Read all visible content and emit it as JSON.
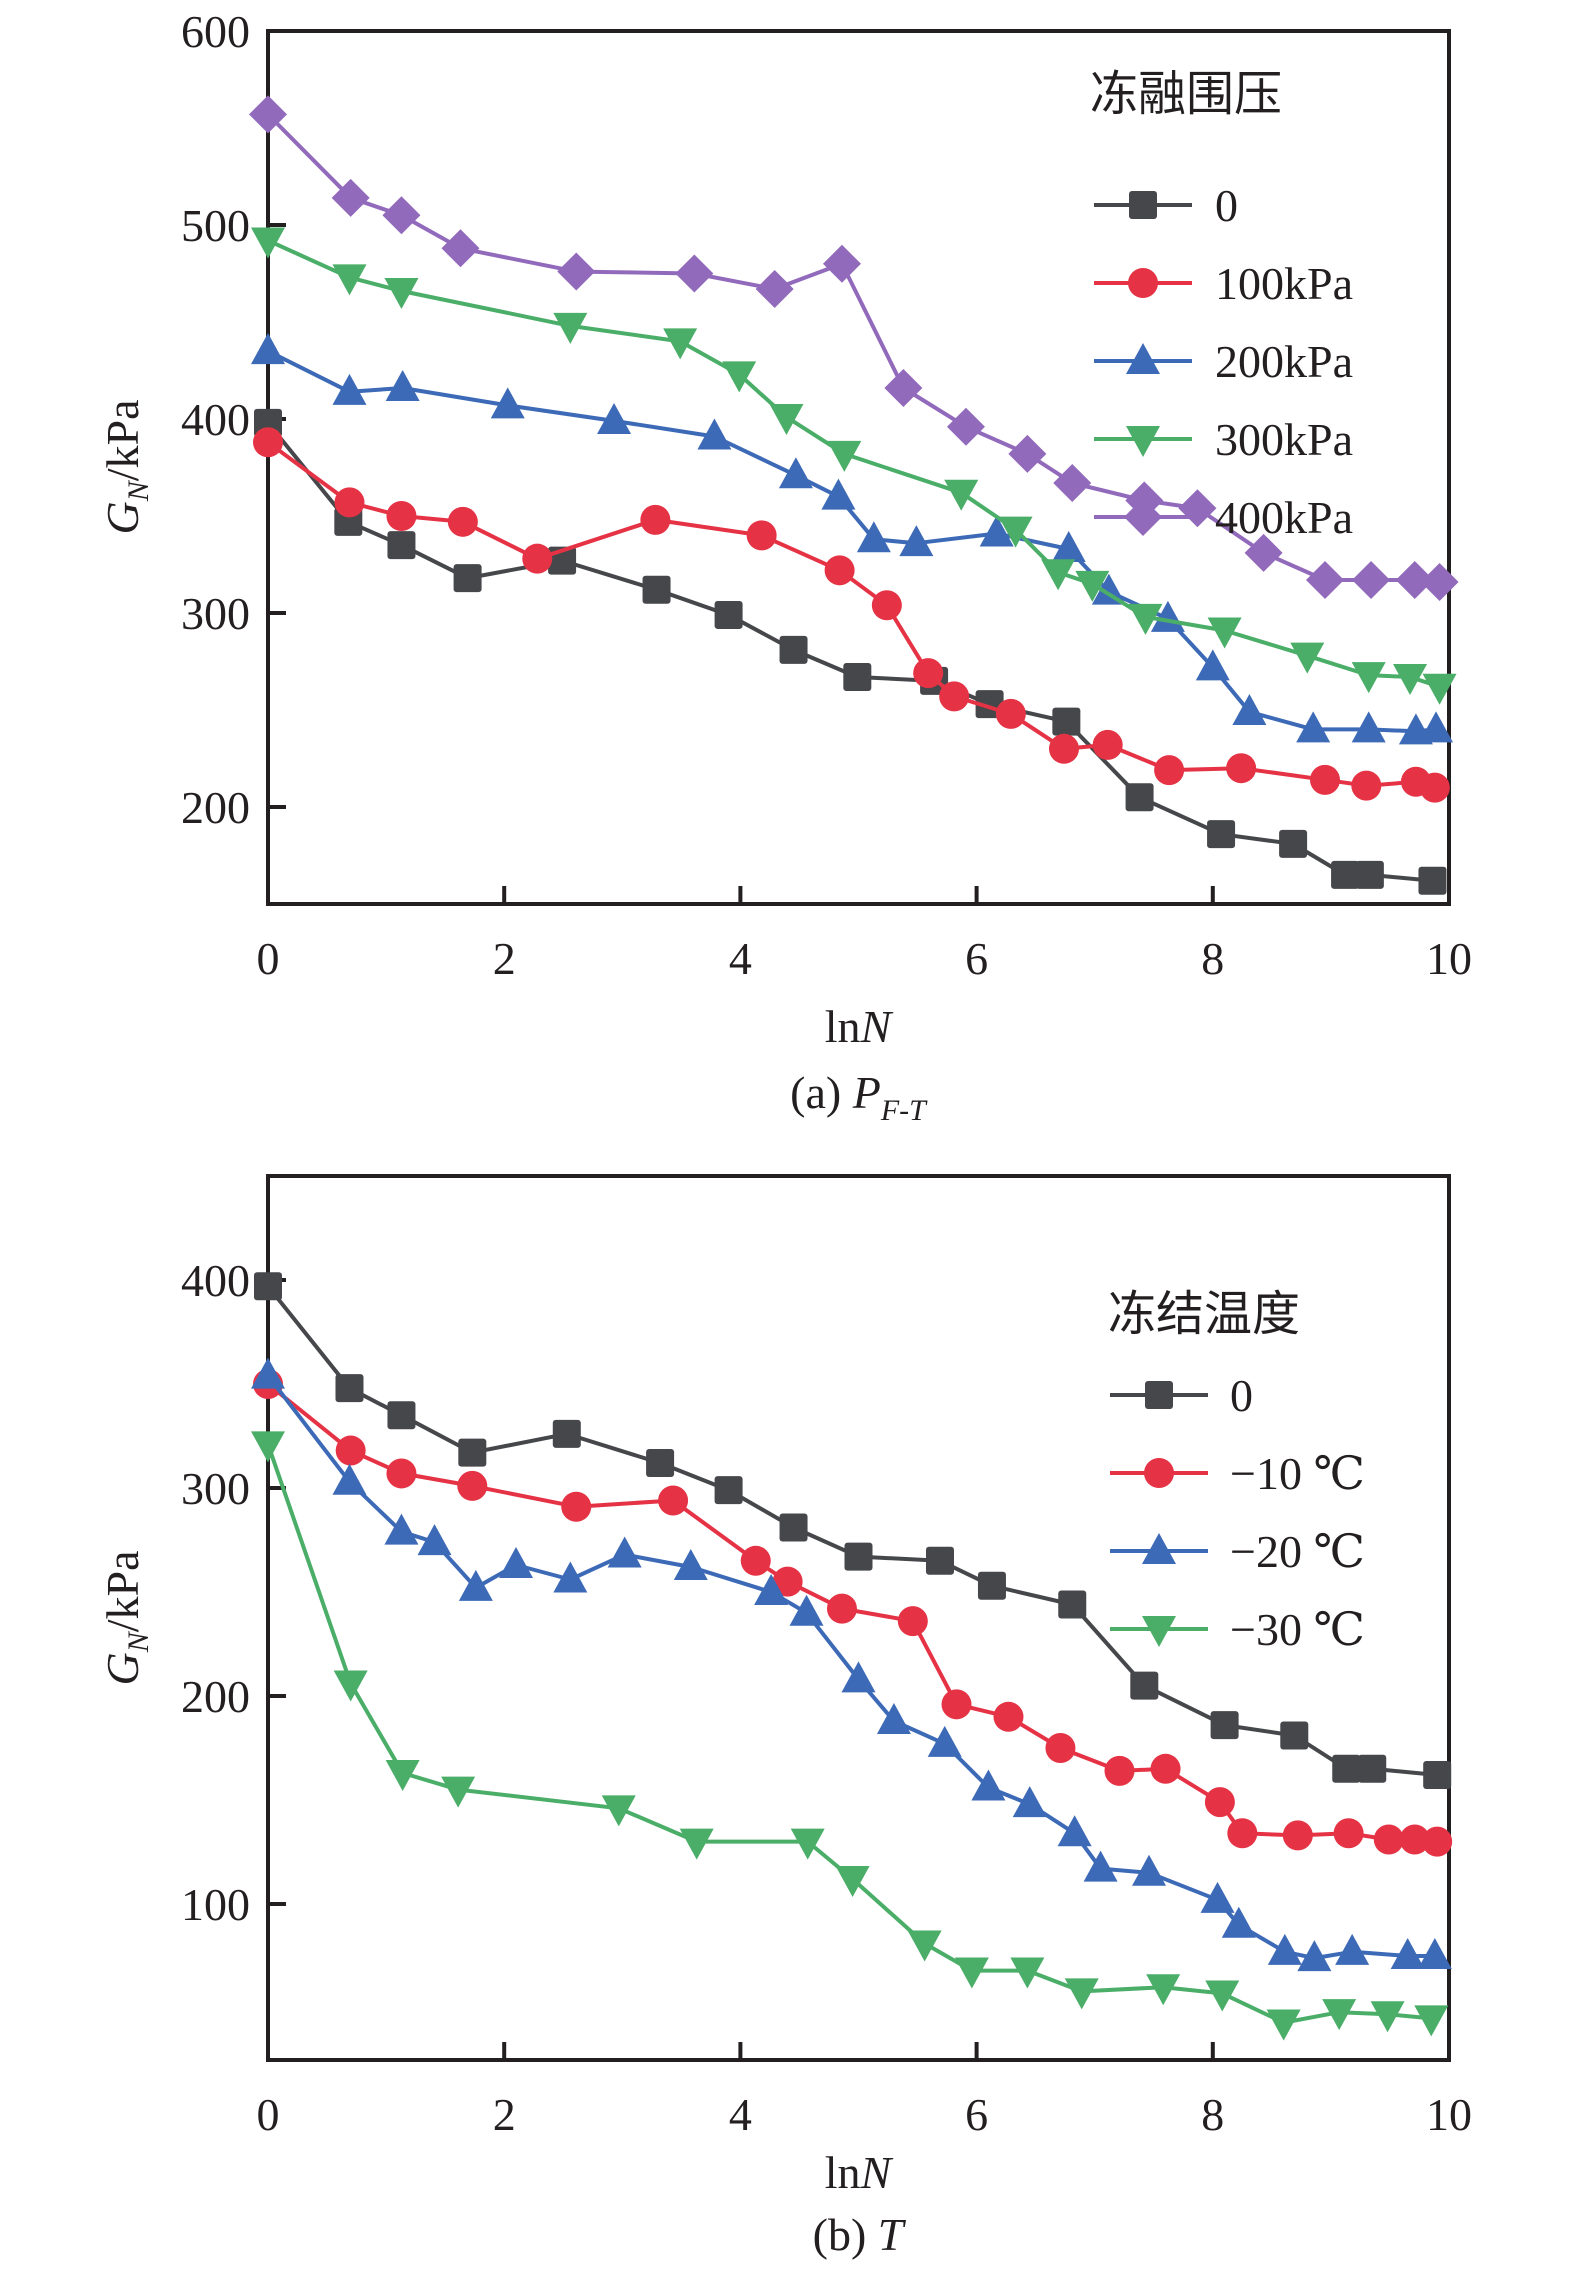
{
  "chart_data": [
    {
      "type": "line",
      "id": "a",
      "caption_prefix": "(a) ",
      "caption_var": "P",
      "caption_sub": "F-T",
      "xlabel_prefix": "ln",
      "xlabel_var": "N",
      "ylabel_var": "G",
      "ylabel_sub": "N",
      "ylabel_unit": "/kPa",
      "xlim": [
        0,
        10
      ],
      "ylim": [
        150,
        600
      ],
      "xticks": [
        0,
        2,
        4,
        6,
        8,
        10
      ],
      "yticks": [
        200,
        300,
        400,
        500,
        600
      ],
      "grid": false,
      "legend_title": "冻融围压",
      "legend_position": "top-right",
      "series": [
        {
          "name": "0",
          "color": "#46474b",
          "marker": "square",
          "x": [
            0,
            0.68,
            1.13,
            1.69,
            2.49,
            3.29,
            3.9,
            4.45,
            4.99,
            5.64,
            6.11,
            6.76,
            7.38,
            8.07,
            8.68,
            9.12,
            9.33,
            9.86
          ],
          "y": [
            398,
            347,
            335,
            318,
            327,
            312,
            299,
            281,
            267,
            265,
            253,
            244,
            205,
            186,
            181,
            165,
            165,
            162
          ]
        },
        {
          "name": "100kPa",
          "color": "#e53345",
          "marker": "circle",
          "x": [
            0,
            0.69,
            1.13,
            1.65,
            2.28,
            3.28,
            4.18,
            4.84,
            5.24,
            5.59,
            5.81,
            6.29,
            6.74,
            7.11,
            7.63,
            8.24,
            8.95,
            9.3,
            9.72,
            9.88
          ],
          "y": [
            388,
            357,
            350,
            347,
            328,
            348,
            340,
            322,
            304,
            269,
            257,
            248,
            230,
            232,
            219,
            220,
            214,
            211,
            213,
            210
          ]
        },
        {
          "name": "200kPa",
          "color": "#3d6ab7",
          "marker": "triangle-up",
          "x": [
            0,
            0.69,
            1.14,
            2.03,
            2.93,
            3.78,
            4.47,
            4.83,
            5.13,
            5.49,
            6.17,
            6.78,
            7.12,
            7.62,
            8.0,
            8.31,
            8.85,
            9.32,
            9.72,
            9.89
          ],
          "y": [
            435,
            414,
            416,
            407,
            399,
            391,
            371,
            360,
            338,
            336,
            341,
            333,
            311,
            297,
            272,
            249,
            240,
            240,
            239,
            240
          ]
        },
        {
          "name": "300kPa",
          "color": "#4aae68",
          "marker": "triangle-down",
          "x": [
            0,
            0.69,
            1.13,
            2.56,
            3.49,
            3.99,
            4.39,
            4.88,
            5.87,
            6.33,
            6.69,
            6.98,
            7.43,
            8.1,
            8.8,
            9.32,
            9.67,
            9.92
          ],
          "y": [
            492,
            473,
            466,
            448,
            440,
            423,
            401,
            382,
            362,
            343,
            321,
            315,
            298,
            291,
            278,
            268,
            267,
            262
          ]
        },
        {
          "name": "400kPa",
          "color": "#926abc",
          "marker": "diamond",
          "x": [
            0,
            0.7,
            1.13,
            1.63,
            2.61,
            3.61,
            4.29,
            4.86,
            5.38,
            5.91,
            6.43,
            6.81,
            7.42,
            7.87,
            8.43,
            8.95,
            9.34,
            9.71,
            9.92
          ],
          "y": [
            557,
            514,
            505,
            488,
            476,
            475,
            467,
            480,
            416,
            396,
            382,
            367,
            358,
            354,
            331,
            317,
            317,
            317,
            316
          ]
        }
      ]
    },
    {
      "type": "line",
      "id": "b",
      "caption_prefix": "(b) ",
      "caption_var": "T",
      "caption_sub": "",
      "xlabel_prefix": "ln",
      "xlabel_var": "N",
      "ylabel_var": "G",
      "ylabel_sub": "N",
      "ylabel_unit": "/kPa",
      "xlim": [
        0,
        10
      ],
      "ylim": [
        25,
        450
      ],
      "xticks": [
        0,
        2,
        4,
        6,
        8,
        10
      ],
      "yticks": [
        100,
        200,
        300,
        400
      ],
      "grid": false,
      "legend_title": "冻结温度",
      "legend_position": "top-right",
      "series": [
        {
          "name": "0",
          "color": "#46474b",
          "marker": "square",
          "x": [
            0,
            0.69,
            1.13,
            1.73,
            2.53,
            3.32,
            3.9,
            4.45,
            5.0,
            5.69,
            6.13,
            6.81,
            7.42,
            8.1,
            8.69,
            9.13,
            9.35,
            9.9
          ],
          "y": [
            397,
            348,
            335,
            317,
            326,
            312,
            299,
            281,
            267,
            265,
            253,
            244,
            205,
            186,
            181,
            165,
            165,
            162
          ]
        },
        {
          "name": "−10 ℃",
          "color": "#e53345",
          "marker": "circle",
          "x": [
            0,
            0.7,
            1.13,
            1.73,
            2.61,
            3.43,
            4.13,
            4.4,
            4.86,
            5.46,
            5.83,
            6.27,
            6.71,
            7.21,
            7.6,
            8.06,
            8.25,
            8.72,
            9.15,
            9.49,
            9.71,
            9.9
          ],
          "y": [
            350,
            318,
            307,
            301,
            291,
            294,
            265,
            255,
            242,
            236,
            196,
            190,
            175,
            164,
            165,
            149,
            134,
            133,
            134,
            131,
            131,
            130
          ]
        },
        {
          "name": "−20 ℃",
          "color": "#3d6ab7",
          "marker": "triangle-up",
          "x": [
            0,
            0.69,
            1.13,
            1.41,
            1.76,
            2.1,
            2.56,
            3.02,
            3.58,
            4.26,
            4.56,
            5.0,
            5.3,
            5.73,
            6.1,
            6.45,
            6.83,
            7.05,
            7.46,
            8.04,
            8.22,
            8.61,
            8.86,
            9.18,
            9.65,
            9.88
          ],
          "y": [
            354,
            303,
            279,
            274,
            252,
            263,
            256,
            268,
            262,
            250,
            240,
            208,
            188,
            177,
            156,
            148,
            134,
            117,
            115,
            102,
            90,
            77,
            74,
            77,
            75,
            75
          ]
        },
        {
          "name": "−30 ℃",
          "color": "#4aae68",
          "marker": "triangle-down",
          "x": [
            0,
            0.7,
            1.14,
            1.61,
            2.97,
            3.63,
            4.57,
            4.95,
            5.56,
            5.96,
            6.43,
            6.89,
            7.58,
            8.08,
            8.6,
            9.07,
            9.48,
            9.85
          ],
          "y": [
            321,
            206,
            163,
            155,
            146,
            130,
            130,
            112,
            81,
            68,
            68,
            58,
            60,
            57,
            43,
            48,
            47,
            45
          ]
        }
      ]
    }
  ]
}
